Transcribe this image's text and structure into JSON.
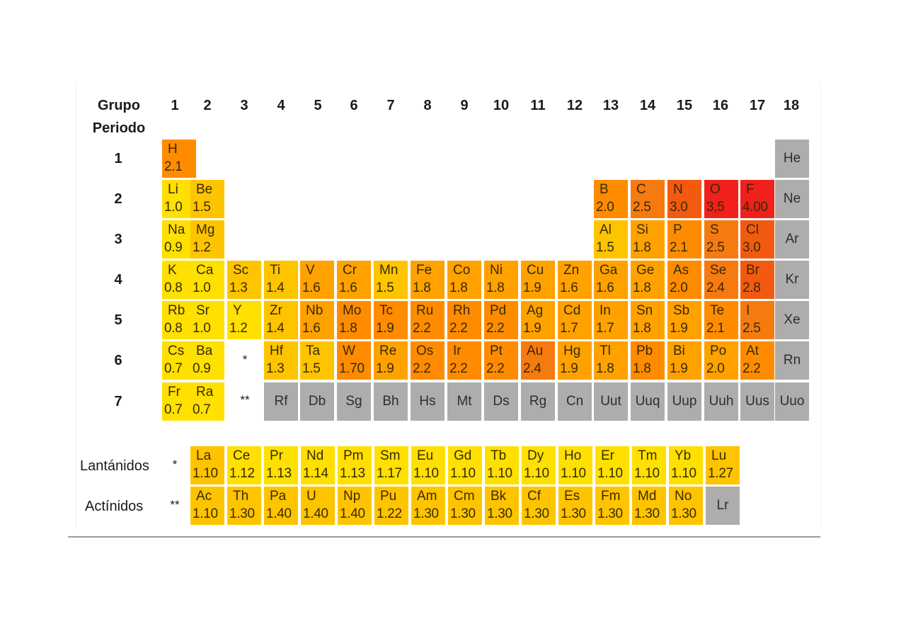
{
  "header": {
    "grupo": "Grupo",
    "periodo": "Periodo"
  },
  "groups": [
    "1",
    "2",
    "3",
    "4",
    "5",
    "6",
    "7",
    "8",
    "9",
    "10",
    "11",
    "12",
    "13",
    "14",
    "15",
    "16",
    "17",
    "18"
  ],
  "periods": [
    "1",
    "2",
    "3",
    "4",
    "5",
    "6",
    "7"
  ],
  "placeholders": {
    "lanthanide_mark": "*",
    "actinide_mark": "**"
  },
  "series": {
    "lanthanides": {
      "label": "Lantánidos",
      "mark": "*"
    },
    "actinides": {
      "label": "Actínidos",
      "mark": "**"
    }
  },
  "colors": {
    "yellow": "#ffe000",
    "yellow_orange": "#ffc400",
    "orange_light": "#ffa200",
    "orange": "#ff8c00",
    "orange_deep": "#f57a10",
    "red_orange": "#f25a10",
    "red": "#f0201a",
    "gray": "#adadad"
  },
  "elements": [
    {
      "symbol": "H",
      "en": "2.1",
      "group": 1,
      "period": 1,
      "color": "orange"
    },
    {
      "symbol": "He",
      "en": "",
      "group": 18,
      "period": 1,
      "color": "gray"
    },
    {
      "symbol": "Li",
      "en": "1.0",
      "group": 1,
      "period": 2,
      "color": "yellow"
    },
    {
      "symbol": "Be",
      "en": "1.5",
      "group": 2,
      "period": 2,
      "color": "yellow_orange"
    },
    {
      "symbol": "B",
      "en": "2.0",
      "group": 13,
      "period": 2,
      "color": "orange"
    },
    {
      "symbol": "C",
      "en": "2.5",
      "group": 14,
      "period": 2,
      "color": "orange_deep"
    },
    {
      "symbol": "N",
      "en": "3.0",
      "group": 15,
      "period": 2,
      "color": "red_orange"
    },
    {
      "symbol": "O",
      "en": "3,5",
      "group": 16,
      "period": 2,
      "color": "red"
    },
    {
      "symbol": "F",
      "en": "4.00",
      "group": 17,
      "period": 2,
      "color": "red"
    },
    {
      "symbol": "Ne",
      "en": "",
      "group": 18,
      "period": 2,
      "color": "gray"
    },
    {
      "symbol": "Na",
      "en": "0.9",
      "group": 1,
      "period": 3,
      "color": "yellow"
    },
    {
      "symbol": "Mg",
      "en": "1.2",
      "group": 2,
      "period": 3,
      "color": "yellow_orange"
    },
    {
      "symbol": "Al",
      "en": "1.5",
      "group": 13,
      "period": 3,
      "color": "yellow_orange"
    },
    {
      "symbol": "Si",
      "en": "1.8",
      "group": 14,
      "period": 3,
      "color": "orange_light"
    },
    {
      "symbol": "P",
      "en": "2.1",
      "group": 15,
      "period": 3,
      "color": "orange"
    },
    {
      "symbol": "S",
      "en": "2.5",
      "group": 16,
      "period": 3,
      "color": "orange_deep"
    },
    {
      "symbol": "Cl",
      "en": "3.0",
      "group": 17,
      "period": 3,
      "color": "red_orange"
    },
    {
      "symbol": "Ar",
      "en": "",
      "group": 18,
      "period": 3,
      "color": "gray"
    },
    {
      "symbol": "K",
      "en": "0.8",
      "group": 1,
      "period": 4,
      "color": "yellow"
    },
    {
      "symbol": "Ca",
      "en": "1.0",
      "group": 2,
      "period": 4,
      "color": "yellow"
    },
    {
      "symbol": "Sc",
      "en": "1.3",
      "group": 3,
      "period": 4,
      "color": "yellow_orange"
    },
    {
      "symbol": "Ti",
      "en": "1.4",
      "group": 4,
      "period": 4,
      "color": "yellow_orange"
    },
    {
      "symbol": "V",
      "en": "1.6",
      "group": 5,
      "period": 4,
      "color": "orange_light"
    },
    {
      "symbol": "Cr",
      "en": "1.6",
      "group": 6,
      "period": 4,
      "color": "orange_light"
    },
    {
      "symbol": "Mn",
      "en": "1.5",
      "group": 7,
      "period": 4,
      "color": "yellow_orange"
    },
    {
      "symbol": "Fe",
      "en": "1.8",
      "group": 8,
      "period": 4,
      "color": "orange_light"
    },
    {
      "symbol": "Co",
      "en": "1.8",
      "group": 9,
      "period": 4,
      "color": "orange_light"
    },
    {
      "symbol": "Ni",
      "en": "1.8",
      "group": 10,
      "period": 4,
      "color": "orange_light"
    },
    {
      "symbol": "Cu",
      "en": "1.9",
      "group": 11,
      "period": 4,
      "color": "orange_light"
    },
    {
      "symbol": "Zn",
      "en": "1.6",
      "group": 12,
      "period": 4,
      "color": "orange_light"
    },
    {
      "symbol": "Ga",
      "en": "1.6",
      "group": 13,
      "period": 4,
      "color": "orange_light"
    },
    {
      "symbol": "Ge",
      "en": "1.8",
      "group": 14,
      "period": 4,
      "color": "orange_light"
    },
    {
      "symbol": "As",
      "en": "2.0",
      "group": 15,
      "period": 4,
      "color": "orange"
    },
    {
      "symbol": "Se",
      "en": "2.4",
      "group": 16,
      "period": 4,
      "color": "orange_deep"
    },
    {
      "symbol": "Br",
      "en": "2.8",
      "group": 17,
      "period": 4,
      "color": "red_orange"
    },
    {
      "symbol": "Kr",
      "en": "",
      "group": 18,
      "period": 4,
      "color": "gray"
    },
    {
      "symbol": "Rb",
      "en": "0.8",
      "group": 1,
      "period": 5,
      "color": "yellow"
    },
    {
      "symbol": "Sr",
      "en": "1.0",
      "group": 2,
      "period": 5,
      "color": "yellow"
    },
    {
      "symbol": "Y",
      "en": "1.2",
      "group": 3,
      "period": 5,
      "color": "yellow"
    },
    {
      "symbol": "Zr",
      "en": "1.4",
      "group": 4,
      "period": 5,
      "color": "yellow_orange"
    },
    {
      "symbol": "Nb",
      "en": "1.6",
      "group": 5,
      "period": 5,
      "color": "orange_light"
    },
    {
      "symbol": "Mo",
      "en": "1.8",
      "group": 6,
      "period": 5,
      "color": "orange"
    },
    {
      "symbol": "Tc",
      "en": "1.9",
      "group": 7,
      "period": 5,
      "color": "orange"
    },
    {
      "symbol": "Ru",
      "en": "2.2",
      "group": 8,
      "period": 5,
      "color": "orange"
    },
    {
      "symbol": "Rh",
      "en": "2.2",
      "group": 9,
      "period": 5,
      "color": "orange"
    },
    {
      "symbol": "Pd",
      "en": "2.2",
      "group": 10,
      "period": 5,
      "color": "orange"
    },
    {
      "symbol": "Ag",
      "en": "1.9",
      "group": 11,
      "period": 5,
      "color": "orange_light"
    },
    {
      "symbol": "Cd",
      "en": "1.7",
      "group": 12,
      "period": 5,
      "color": "orange_light"
    },
    {
      "symbol": "In",
      "en": "1.7",
      "group": 13,
      "period": 5,
      "color": "orange_light"
    },
    {
      "symbol": "Sn",
      "en": "1.8",
      "group": 14,
      "period": 5,
      "color": "orange_light"
    },
    {
      "symbol": "Sb",
      "en": "1.9",
      "group": 15,
      "period": 5,
      "color": "orange_light"
    },
    {
      "symbol": "Te",
      "en": "2.1",
      "group": 16,
      "period": 5,
      "color": "orange"
    },
    {
      "symbol": "I",
      "en": "2.5",
      "group": 17,
      "period": 5,
      "color": "orange_deep"
    },
    {
      "symbol": "Xe",
      "en": "",
      "group": 18,
      "period": 5,
      "color": "gray"
    },
    {
      "symbol": "Cs",
      "en": "0.7",
      "group": 1,
      "period": 6,
      "color": "yellow"
    },
    {
      "symbol": "Ba",
      "en": "0.9",
      "group": 2,
      "period": 6,
      "color": "yellow"
    },
    {
      "symbol": "Hf",
      "en": "1.3",
      "group": 4,
      "period": 6,
      "color": "yellow_orange"
    },
    {
      "symbol": "Ta",
      "en": "1.5",
      "group": 5,
      "period": 6,
      "color": "yellow_orange"
    },
    {
      "symbol": "W",
      "en": "1.70",
      "group": 6,
      "period": 6,
      "color": "orange"
    },
    {
      "symbol": "Re",
      "en": "1.9",
      "group": 7,
      "period": 6,
      "color": "orange_light"
    },
    {
      "symbol": "Os",
      "en": "2.2",
      "group": 8,
      "period": 6,
      "color": "orange"
    },
    {
      "symbol": "Ir",
      "en": "2.2",
      "group": 9,
      "period": 6,
      "color": "orange"
    },
    {
      "symbol": "Pt",
      "en": "2.2",
      "group": 10,
      "period": 6,
      "color": "orange"
    },
    {
      "symbol": "Au",
      "en": "2.4",
      "group": 11,
      "period": 6,
      "color": "orange_deep"
    },
    {
      "symbol": "Hg",
      "en": "1.9",
      "group": 12,
      "period": 6,
      "color": "orange_light"
    },
    {
      "symbol": "Tl",
      "en": "1.8",
      "group": 13,
      "period": 6,
      "color": "orange_light"
    },
    {
      "symbol": "Pb",
      "en": "1.8",
      "group": 14,
      "period": 6,
      "color": "orange"
    },
    {
      "symbol": "Bi",
      "en": "1.9",
      "group": 15,
      "period": 6,
      "color": "orange_light"
    },
    {
      "symbol": "Po",
      "en": "2.0",
      "group": 16,
      "period": 6,
      "color": "orange_light"
    },
    {
      "symbol": "At",
      "en": "2.2",
      "group": 17,
      "period": 6,
      "color": "orange"
    },
    {
      "symbol": "Rn",
      "en": "",
      "group": 18,
      "period": 6,
      "color": "gray"
    },
    {
      "symbol": "Fr",
      "en": "0.7",
      "group": 1,
      "period": 7,
      "color": "yellow"
    },
    {
      "symbol": "Ra",
      "en": "0.7",
      "group": 2,
      "period": 7,
      "color": "yellow"
    },
    {
      "symbol": "Rf",
      "en": "",
      "group": 4,
      "period": 7,
      "color": "gray"
    },
    {
      "symbol": "Db",
      "en": "",
      "group": 5,
      "period": 7,
      "color": "gray"
    },
    {
      "symbol": "Sg",
      "en": "",
      "group": 6,
      "period": 7,
      "color": "gray"
    },
    {
      "symbol": "Bh",
      "en": "",
      "group": 7,
      "period": 7,
      "color": "gray"
    },
    {
      "symbol": "Hs",
      "en": "",
      "group": 8,
      "period": 7,
      "color": "gray"
    },
    {
      "symbol": "Mt",
      "en": "",
      "group": 9,
      "period": 7,
      "color": "gray"
    },
    {
      "symbol": "Ds",
      "en": "",
      "group": 10,
      "period": 7,
      "color": "gray"
    },
    {
      "symbol": "Rg",
      "en": "",
      "group": 11,
      "period": 7,
      "color": "gray"
    },
    {
      "symbol": "Cn",
      "en": "",
      "group": 12,
      "period": 7,
      "color": "gray"
    },
    {
      "symbol": "Uut",
      "en": "",
      "group": 13,
      "period": 7,
      "color": "gray"
    },
    {
      "symbol": "Uuq",
      "en": "",
      "group": 14,
      "period": 7,
      "color": "gray"
    },
    {
      "symbol": "Uup",
      "en": "",
      "group": 15,
      "period": 7,
      "color": "gray"
    },
    {
      "symbol": "Uuh",
      "en": "",
      "group": 16,
      "period": 7,
      "color": "gray"
    },
    {
      "symbol": "Uus",
      "en": "",
      "group": 17,
      "period": 7,
      "color": "gray"
    },
    {
      "symbol": "Uuo",
      "en": "",
      "group": 18,
      "period": 7,
      "color": "gray"
    }
  ],
  "lanthanides": [
    {
      "symbol": "La",
      "en": "1.10",
      "color": "yellow_orange"
    },
    {
      "symbol": "Ce",
      "en": "1.12",
      "color": "yellow"
    },
    {
      "symbol": "Pr",
      "en": "1.13",
      "color": "yellow"
    },
    {
      "symbol": "Nd",
      "en": "1.14",
      "color": "yellow"
    },
    {
      "symbol": "Pm",
      "en": "1.13",
      "color": "yellow"
    },
    {
      "symbol": "Sm",
      "en": "1.17",
      "color": "yellow"
    },
    {
      "symbol": "Eu",
      "en": "1.10",
      "color": "yellow"
    },
    {
      "symbol": "Gd",
      "en": "1.10",
      "color": "yellow"
    },
    {
      "symbol": "Tb",
      "en": "1.10",
      "color": "yellow"
    },
    {
      "symbol": "Dy",
      "en": "1.10",
      "color": "yellow"
    },
    {
      "symbol": "Ho",
      "en": "1.10",
      "color": "yellow"
    },
    {
      "symbol": "Er",
      "en": "1.10",
      "color": "yellow"
    },
    {
      "symbol": "Tm",
      "en": "1.10",
      "color": "yellow"
    },
    {
      "symbol": "Yb",
      "en": "1.10",
      "color": "yellow"
    },
    {
      "symbol": "Lu",
      "en": "1.27",
      "color": "yellow_orange"
    }
  ],
  "actinides": [
    {
      "symbol": "Ac",
      "en": "1.10",
      "color": "yellow_orange"
    },
    {
      "symbol": "Th",
      "en": "1.30",
      "color": "yellow_orange"
    },
    {
      "symbol": "Pa",
      "en": "1.40",
      "color": "yellow_orange"
    },
    {
      "symbol": "U",
      "en": "1.40",
      "color": "yellow_orange"
    },
    {
      "symbol": "Np",
      "en": "1.40",
      "color": "yellow_orange"
    },
    {
      "symbol": "Pu",
      "en": "1.22",
      "color": "yellow_orange"
    },
    {
      "symbol": "Am",
      "en": "1.30",
      "color": "yellow_orange"
    },
    {
      "symbol": "Cm",
      "en": "1.30",
      "color": "yellow_orange"
    },
    {
      "symbol": "Bk",
      "en": "1.30",
      "color": "yellow_orange"
    },
    {
      "symbol": "Cf",
      "en": "1.30",
      "color": "yellow_orange"
    },
    {
      "symbol": "Es",
      "en": "1.30",
      "color": "yellow_orange"
    },
    {
      "symbol": "Fm",
      "en": "1.30",
      "color": "yellow_orange"
    },
    {
      "symbol": "Md",
      "en": "1.30",
      "color": "yellow_orange"
    },
    {
      "symbol": "No",
      "en": "1.30",
      "color": "yellow_orange"
    },
    {
      "symbol": "Lr",
      "en": "",
      "color": "gray"
    }
  ]
}
